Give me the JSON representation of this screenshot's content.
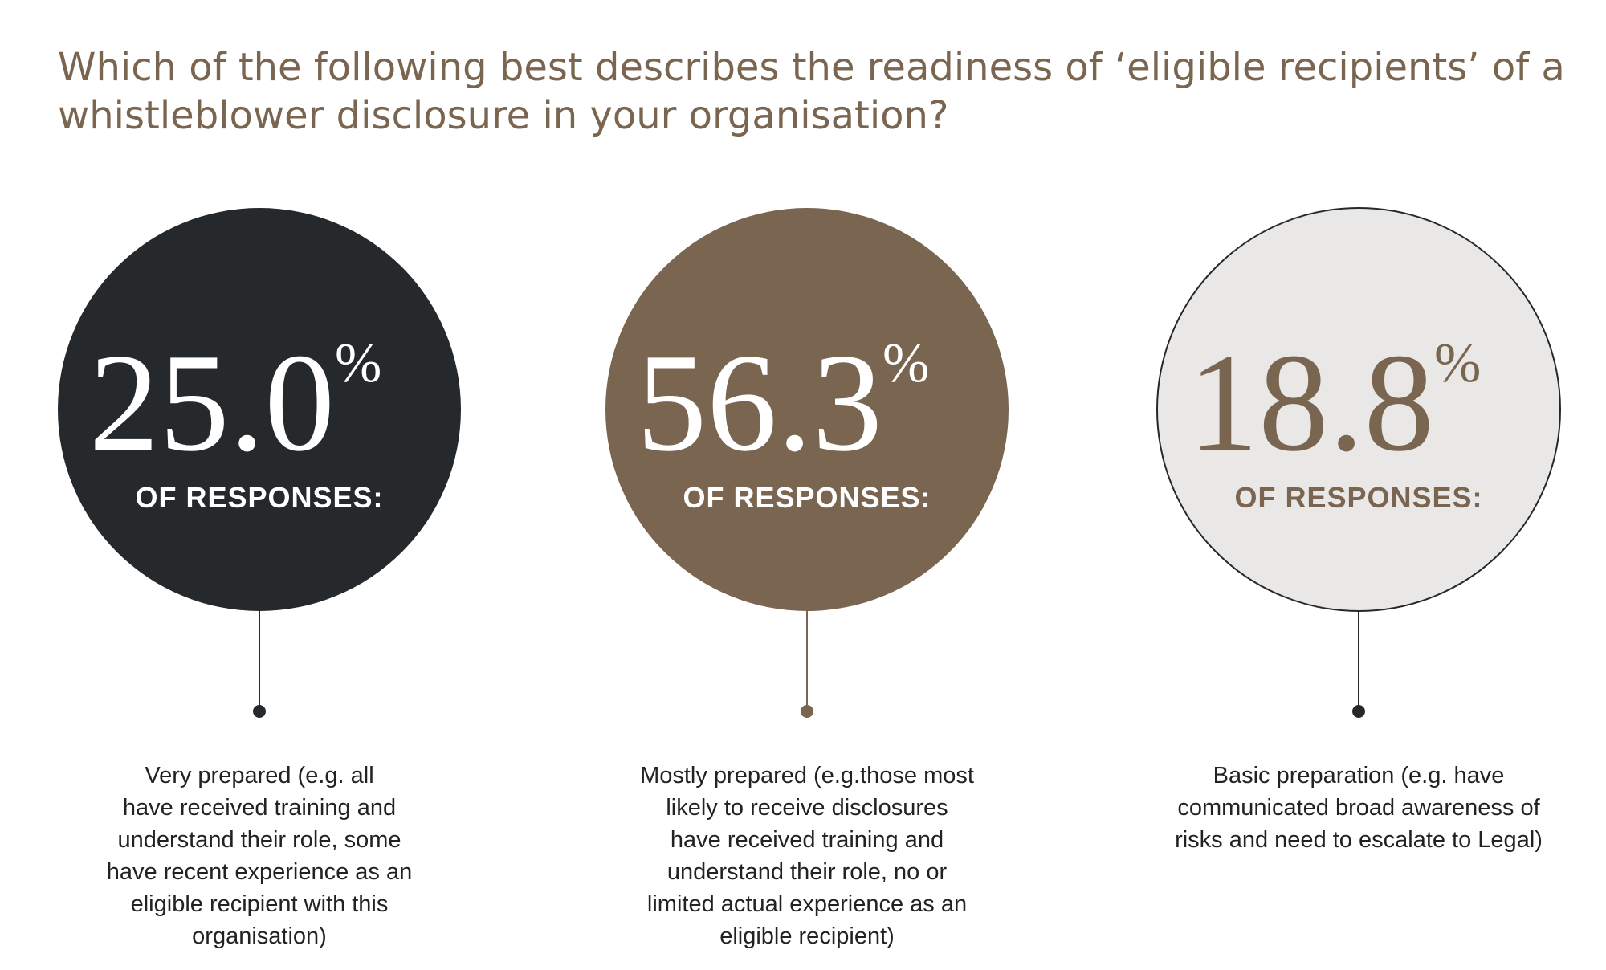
{
  "title": [
    "Which of the following best describes the readiness of ‘eligible recipients’ of a",
    "whistleblower disclosure in your organisation?"
  ],
  "items": [
    {
      "value": "25.0",
      "unit": "%",
      "label": "OF RESPONSES:",
      "description": [
        "Very prepared (e.g. all",
        "have received training and",
        "understand their role, some",
        "have recent experience as an",
        "eligible recipient with this",
        "organisation)"
      ]
    },
    {
      "value": "56.3",
      "unit": "%",
      "label": "OF RESPONSES:",
      "description": [
        "Mostly prepared (e.g.those most",
        "likely to receive disclosures",
        "have received training and",
        "understand their role, no or",
        "limited actual experience as an",
        "eligible recipient)"
      ]
    },
    {
      "value": "18.8",
      "unit": "%",
      "label": "OF RESPONSES:",
      "description": [
        "Basic preparation (e.g. have",
        "communicated broad awareness of",
        "risks and need to escalate to Legal)"
      ]
    }
  ]
}
